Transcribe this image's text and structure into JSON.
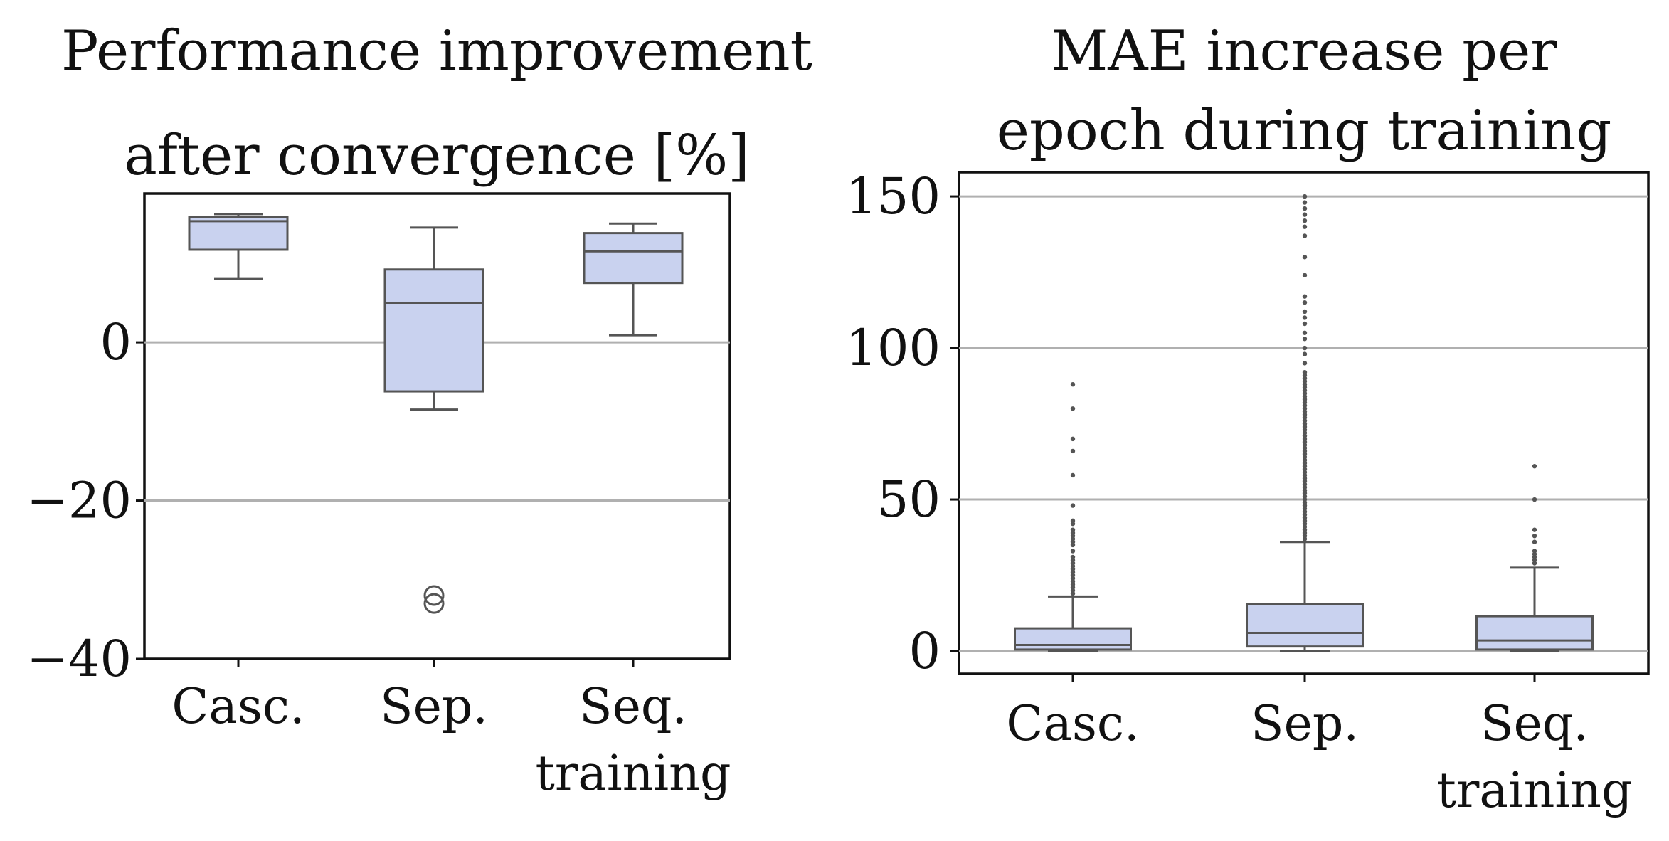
{
  "chart_data": [
    {
      "type": "box",
      "title_lines": [
        "Performance improvement",
        "after convergence [%]"
      ],
      "categories": [
        "Casc.",
        "Sep.",
        "Seq.\ntraining"
      ],
      "ylim": [
        -40,
        18.8
      ],
      "yticks": [
        0,
        -20,
        -40
      ],
      "ytick_labels": [
        "0",
        "−20",
        "−40"
      ],
      "grid": "horizontal",
      "boxes": [
        {
          "category": "Casc.",
          "whisker_low": 8.0,
          "q1": 11.7,
          "median": 15.3,
          "q3": 15.8,
          "whisker_high": 16.2,
          "fliers": []
        },
        {
          "category": "Sep.",
          "whisker_low": -8.5,
          "q1": -6.2,
          "median": 5.0,
          "q3": 9.2,
          "whisker_high": 14.5,
          "fliers": [
            -32.0,
            -33.0
          ]
        },
        {
          "category": "Seq.\ntraining",
          "whisker_low": 0.9,
          "q1": 7.5,
          "median": 11.5,
          "q3": 13.8,
          "whisker_high": 15.0,
          "fliers": []
        }
      ],
      "colors": {
        "box_fill": "#c9d2ef",
        "box_edge": "#555555",
        "grid": "#b0b0b0",
        "flier_edge": "#555555"
      }
    },
    {
      "type": "box",
      "title_lines": [
        "MAE increase per",
        "epoch during training"
      ],
      "categories": [
        "Casc.",
        "Sep.",
        "Seq.\ntraining"
      ],
      "ylim": [
        -7.5,
        158
      ],
      "yticks": [
        150,
        100,
        50,
        0
      ],
      "ytick_labels": [
        "150",
        "100",
        "50",
        "0"
      ],
      "grid": "horizontal",
      "boxes": [
        {
          "category": "Casc.",
          "whisker_low": 0,
          "q1": 0.5,
          "median": 2.0,
          "q3": 7.5,
          "whisker_high": 18.0,
          "fliers": [
            19,
            20,
            21,
            22,
            23,
            24,
            25,
            26,
            27,
            28,
            29,
            30,
            31,
            33,
            35,
            36,
            37,
            38,
            39,
            40,
            42,
            43,
            48,
            58,
            66,
            70,
            80,
            88
          ]
        },
        {
          "category": "Sep.",
          "whisker_low": 0,
          "q1": 1.5,
          "median": 6.0,
          "q3": 15.5,
          "whisker_high": 36.0,
          "fliers": [
            37,
            38,
            39,
            40,
            41,
            42,
            43,
            44,
            45,
            46,
            47,
            48,
            49,
            50,
            51,
            52,
            53,
            54,
            55,
            56,
            57,
            58,
            59,
            60,
            61,
            62,
            63,
            64,
            65,
            66,
            67,
            68,
            69,
            70,
            71,
            72,
            73,
            74,
            75,
            76,
            77,
            78,
            79,
            80,
            81,
            82,
            83,
            84,
            85,
            86,
            87,
            88,
            89,
            90,
            91,
            92,
            95,
            98,
            100,
            103,
            105,
            108,
            110,
            112,
            115,
            117,
            124,
            130,
            137,
            140,
            142,
            144,
            146,
            148,
            150
          ]
        },
        {
          "category": "Seq.\ntraining",
          "whisker_low": 0,
          "q1": 0.5,
          "median": 3.5,
          "q3": 11.5,
          "whisker_high": 27.5,
          "fliers": [
            29,
            30,
            31,
            32,
            33,
            36,
            38,
            40,
            50,
            61
          ]
        }
      ],
      "colors": {
        "box_fill": "#c9d2ef",
        "box_edge": "#555555",
        "grid": "#b0b0b0",
        "flier_color": "#555555"
      }
    }
  ]
}
